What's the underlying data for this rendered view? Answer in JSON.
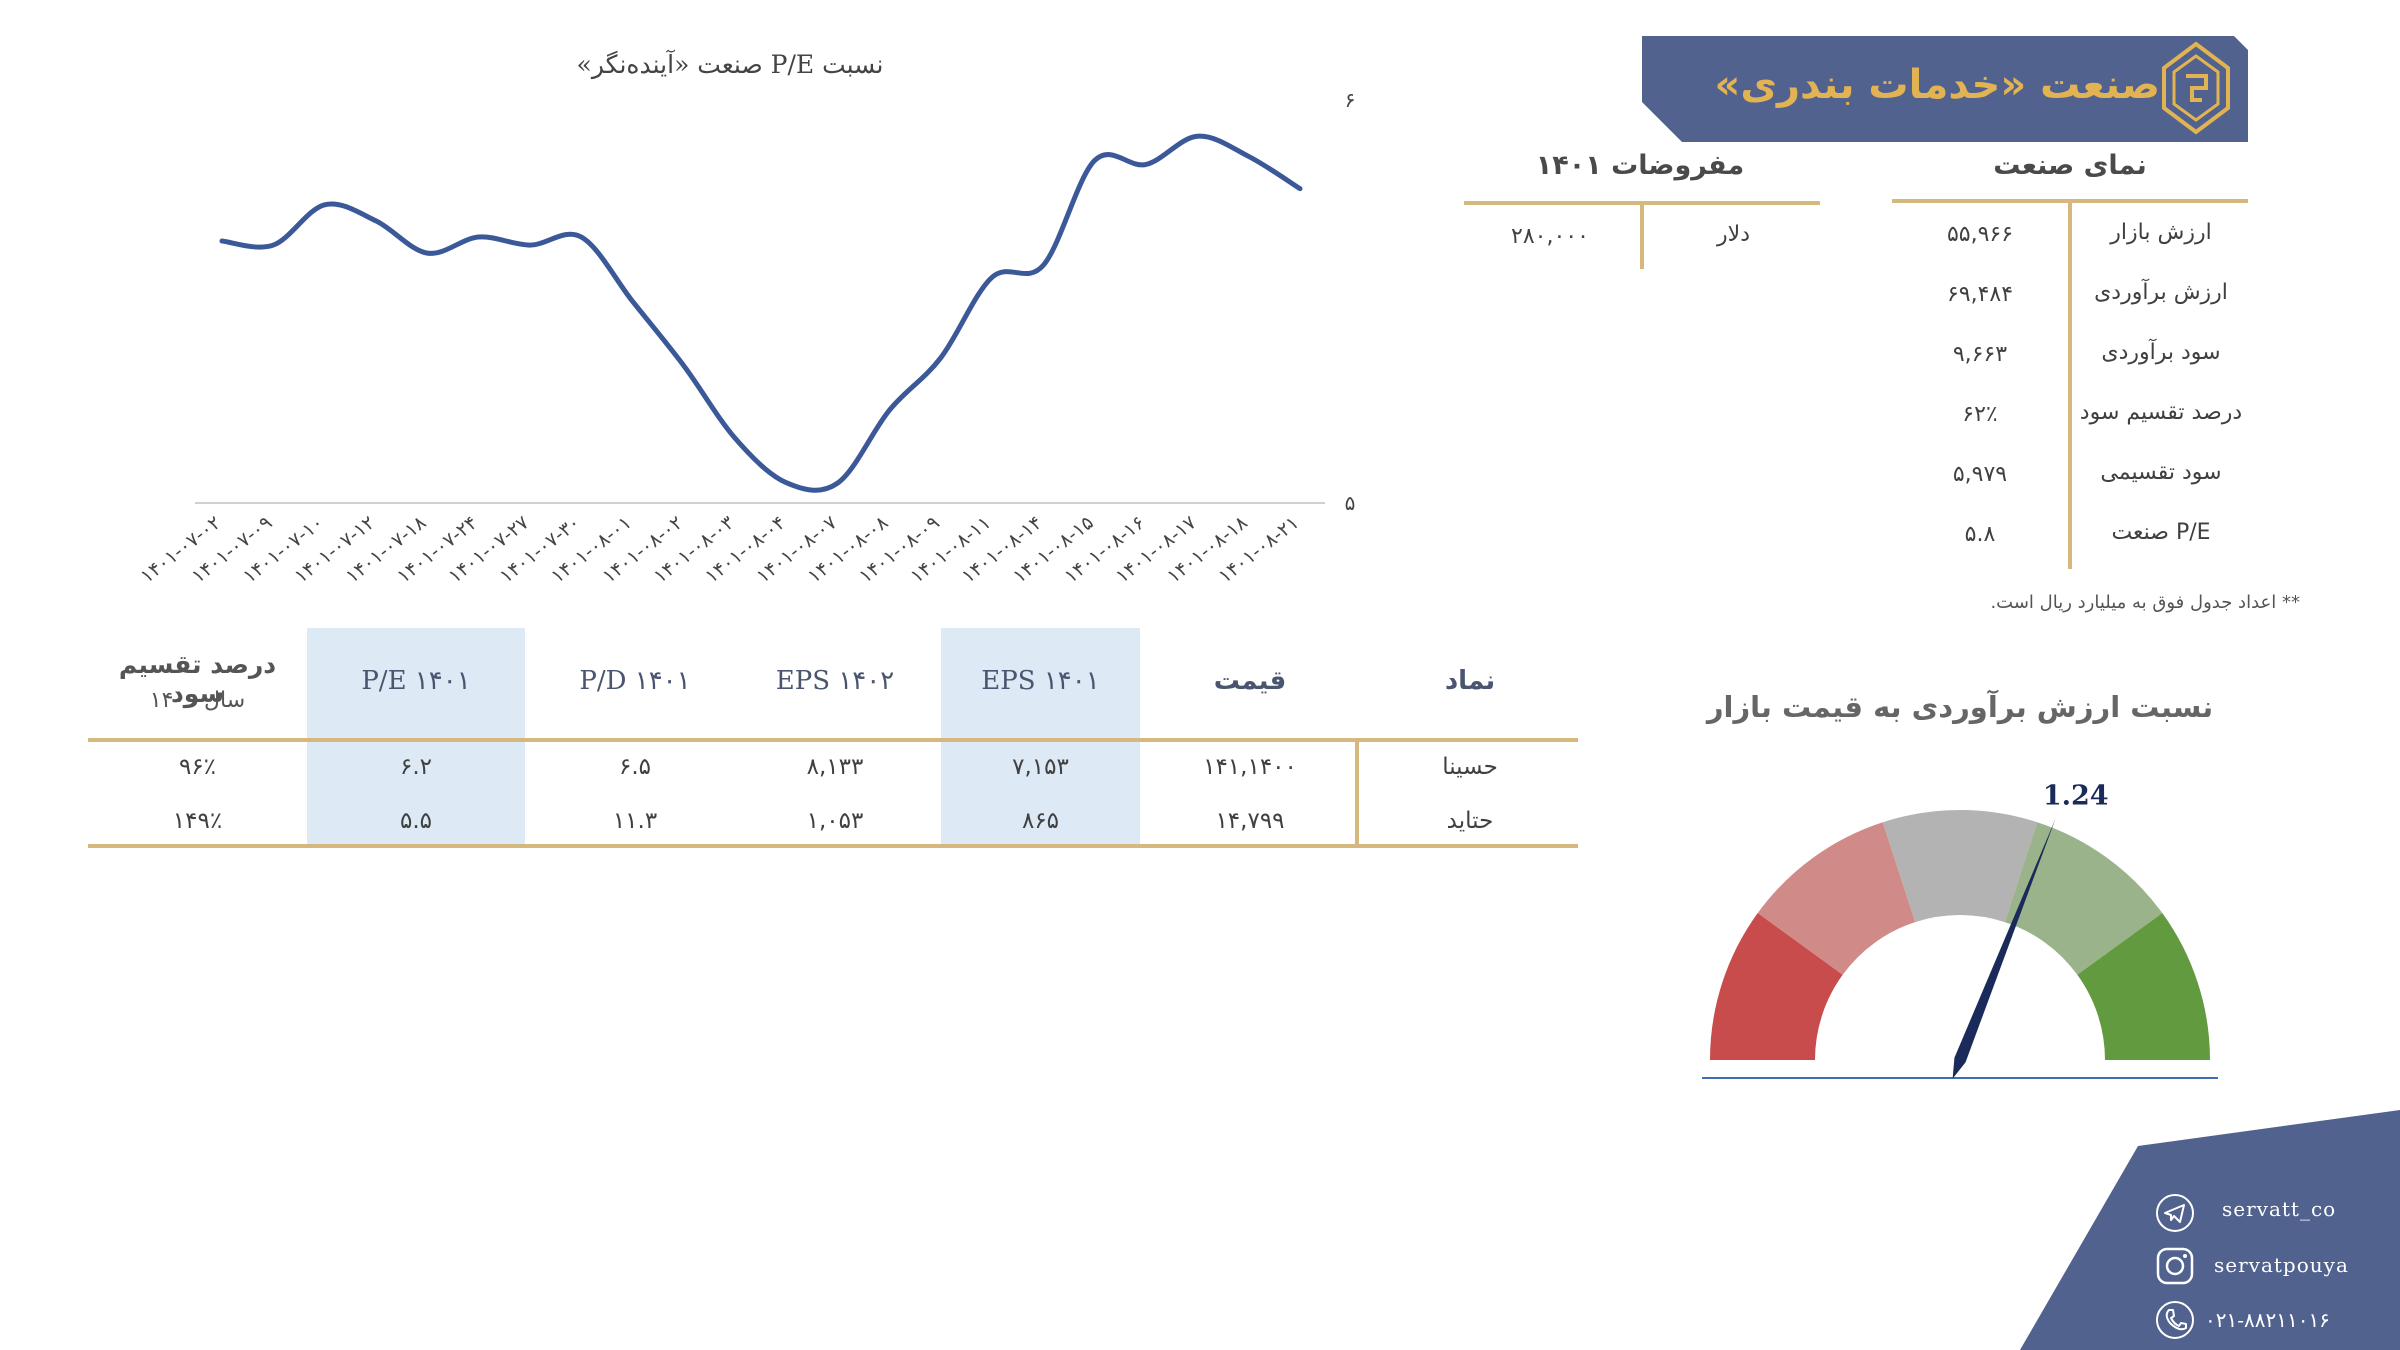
{
  "header": {
    "title": "صنعت «خدمات بندری»",
    "bg_color": "#51628f",
    "title_color": "#e2b352"
  },
  "overview": {
    "title": "نمای صنعت",
    "rows": [
      {
        "label": "ارزش بازار",
        "value": "۵۵,۹۶۶"
      },
      {
        "label": "ارزش برآوردی",
        "value": "۶۹,۴۸۴"
      },
      {
        "label": "سود برآوردی",
        "value": "۹,۶۶۳"
      },
      {
        "label": "درصد تقسیم سود",
        "value": "۶۲٪"
      },
      {
        "label": "سود تقسیمی",
        "value": "۵,۹۷۹"
      },
      {
        "label": "P/E صنعت",
        "value": "۵.۸"
      }
    ]
  },
  "assumptions": {
    "title": "مفروضات ۱۴۰۱",
    "rows": [
      {
        "label": "دلار",
        "value": "۲۸۰,۰۰۰"
      }
    ]
  },
  "note": "** اعداد جدول فوق به میلیارد ریال است.",
  "chart_data": [
    {
      "type": "line",
      "title": "نسبت P/E صنعت «آینده‌نگر»",
      "x": [
        "۱۴۰۱-۰۷-۰۲",
        "۱۴۰۱-۰۷-۰۹",
        "۱۴۰۱-۰۷-۱۰",
        "۱۴۰۱-۰۷-۱۲",
        "۱۴۰۱-۰۷-۱۸",
        "۱۴۰۱-۰۷-۲۴",
        "۱۴۰۱-۰۷-۲۷",
        "۱۴۰۱-۰۷-۳۰",
        "۱۴۰۱-۰۸-۰۱",
        "۱۴۰۱-۰۸-۰۲",
        "۱۴۰۱-۰۸-۰۳",
        "۱۴۰۱-۰۸-۰۴",
        "۱۴۰۱-۰۸-۰۷",
        "۱۴۰۱-۰۸-۰۸",
        "۱۴۰۱-۰۸-۰۹",
        "۱۴۰۱-۰۸-۱۱",
        "۱۴۰۱-۰۸-۱۴",
        "۱۴۰۱-۰۸-۱۵",
        "۱۴۰۱-۰۸-۱۶",
        "۱۴۰۱-۰۸-۱۷",
        "۱۴۰۱-۰۸-۱۸",
        "۱۴۰۱-۰۸-۲۱"
      ],
      "series": [
        {
          "values": [
            5.65,
            5.64,
            5.74,
            5.7,
            5.62,
            5.66,
            5.64,
            5.66,
            5.5,
            5.34,
            5.16,
            5.05,
            5.05,
            5.23,
            5.36,
            5.56,
            5.59,
            5.85,
            5.84,
            5.91,
            5.86,
            5.78
          ]
        }
      ],
      "y_ticks": [
        "۵",
        "۶"
      ],
      "ylim": [
        5,
        6
      ],
      "line_color": "#3b5998",
      "grid": false
    },
    {
      "type": "gauge",
      "title": "نسبت ارزش برآوردی به قیمت بازار",
      "value": 1.24,
      "value_label": "1.24",
      "min": 0,
      "max": 2,
      "segments": [
        {
          "color": "#c94c4c"
        },
        {
          "color": "#d08a88"
        },
        {
          "color": "#b3b3b3"
        },
        {
          "color": "#9bb38a"
        },
        {
          "color": "#619a3f"
        }
      ],
      "needle_color": "#1a2a5a"
    }
  ],
  "companies_table": {
    "headers": {
      "symbol": "نماد",
      "price": "قیمت",
      "eps1401": "EPS ۱۴۰۱",
      "eps1402": "EPS ۱۴۰۲",
      "pd1401": "P/D ۱۴۰۱",
      "pe1401": "P/E ۱۴۰۱",
      "div_line1": "درصد تقسیم سود",
      "div_line2": "سال ۱۴۰۰"
    },
    "rows": [
      {
        "symbol": "حسینا",
        "price": "۱۴۱,۱۴۰۰",
        "eps1401": "۷,۱۵۳",
        "eps1402": "۸,۱۳۳",
        "pd1401": "۶.۵",
        "pe1401": "۶.۲",
        "div": "۹۶٪"
      },
      {
        "symbol": "حتاید",
        "price": "۱۴,۷۹۹",
        "eps1401": "۸۶۵",
        "eps1402": "۱,۰۵۳",
        "pd1401": "۱۱.۳",
        "pe1401": "۵.۵",
        "div": "۱۴۹٪"
      }
    ]
  },
  "contact": {
    "telegram": "servatt_co",
    "instagram": "servatpouya",
    "phone": "۰۲۱-۸۸۲۱۱۰۱۶"
  }
}
